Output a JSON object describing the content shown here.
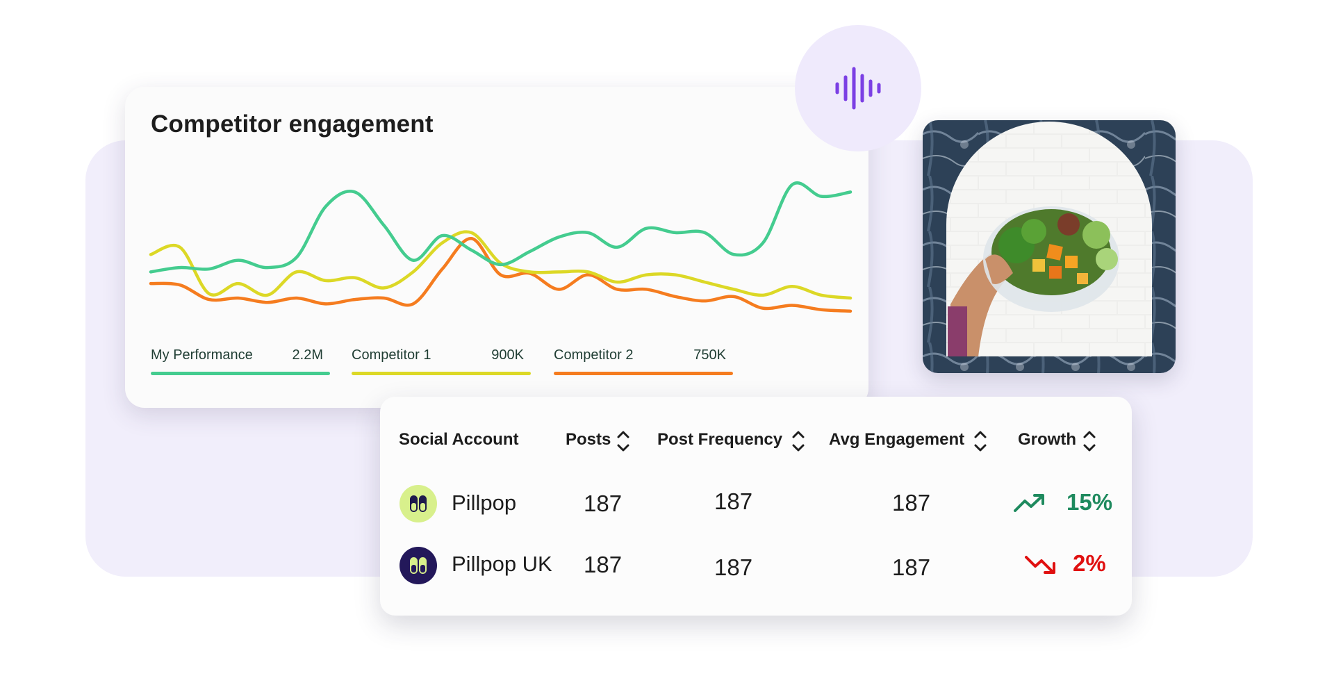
{
  "chart_card": {
    "title": "Competitor engagement"
  },
  "chart_data": {
    "type": "line",
    "title": "Competitor engagement",
    "series": [
      {
        "name": "My Performance",
        "total": "2.2M",
        "color": "#44cc8f",
        "values": [
          40,
          43,
          42,
          48,
          43,
          50,
          85,
          95,
          72,
          48,
          65,
          55,
          45,
          54,
          64,
          67,
          57,
          70,
          67,
          67,
          52,
          60,
          100,
          92,
          95
        ]
      },
      {
        "name": "Competitor 1",
        "total": "900K",
        "color": "#dcd826",
        "values": [
          52,
          57,
          25,
          32,
          24,
          40,
          34,
          36,
          29,
          40,
          60,
          67,
          46,
          40,
          40,
          40,
          33,
          38,
          38,
          33,
          28,
          24,
          30,
          24,
          22
        ]
      },
      {
        "name": "Competitor 2",
        "total": "750K",
        "color": "#f57c1f",
        "values": [
          32,
          31,
          21,
          22,
          19,
          22,
          18,
          21,
          22,
          18,
          42,
          63,
          38,
          39,
          28,
          38,
          28,
          28,
          23,
          20,
          23,
          15,
          17,
          14,
          13
        ]
      }
    ],
    "ylim": [
      0,
      110
    ],
    "grid": false,
    "legend": "bottom"
  },
  "mic_icon": "sound-wave-icon",
  "photo": {
    "subject": "hand holding poke bowl",
    "icon": "poke-bowl-photo"
  },
  "table": {
    "headers": [
      "Social Account",
      "Posts",
      "Post Frequency",
      "Avg Engagement",
      "Growth"
    ],
    "sort_icon": "sort-chevrons-icon",
    "rows": [
      {
        "account": "Pillpop",
        "posts": "187",
        "frequency": "187",
        "engagement": "187",
        "growth": "15%",
        "direction": "up",
        "color": "#1e8a5e",
        "avatar_bg": "#d8f08c",
        "avatar_fg": "#1e1a4c"
      },
      {
        "account": "Pillpop UK",
        "posts": "187",
        "frequency": "187",
        "engagement": "187",
        "growth": "2%",
        "direction": "down",
        "color": "#e01010",
        "avatar_bg": "#23185a",
        "avatar_fg": "#d8f08c"
      }
    ]
  },
  "colors": {
    "accent_purple": "#7b3fe4",
    "backdrop": "#f1eefb"
  }
}
